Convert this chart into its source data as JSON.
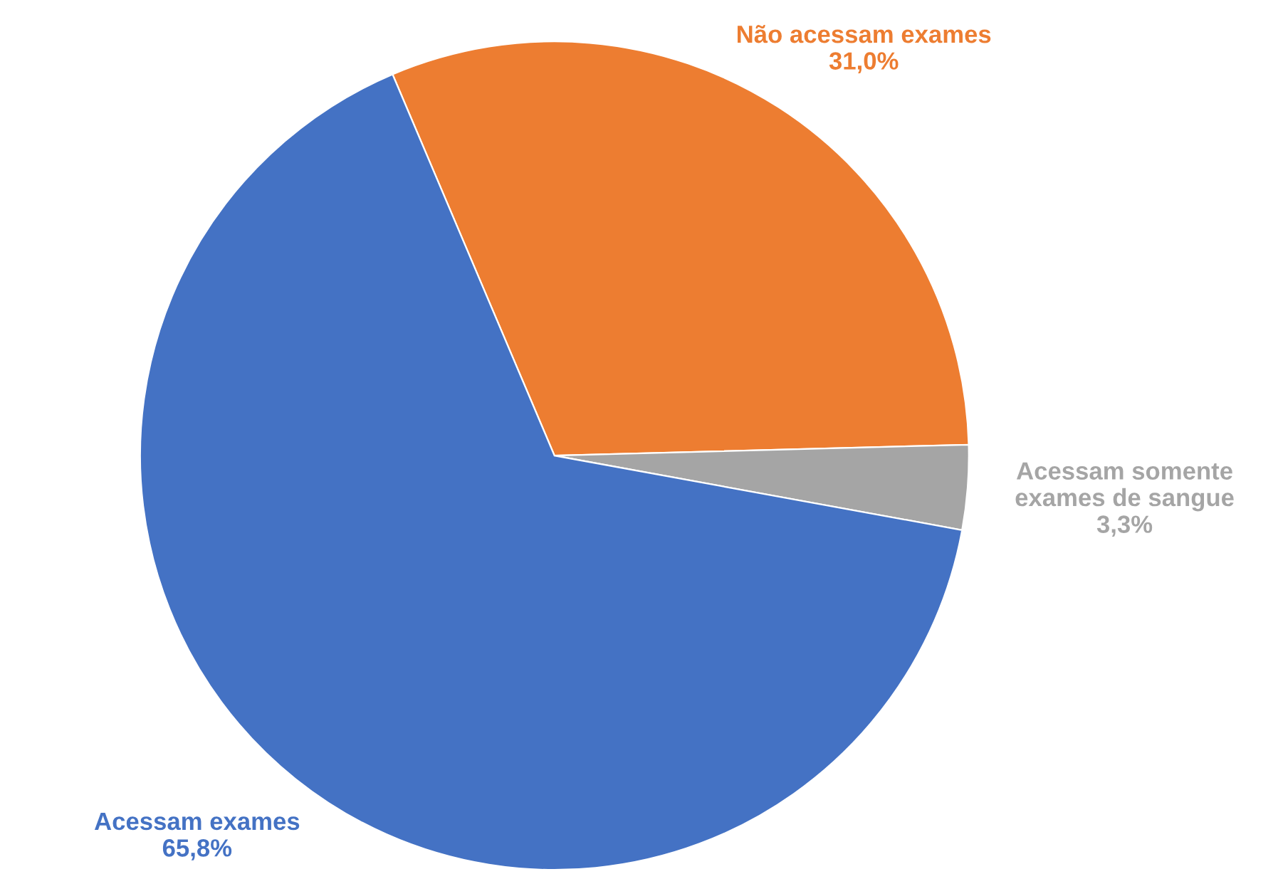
{
  "chart_data": {
    "type": "pie",
    "categories": [
      "Não acessam exames",
      "Acessam somente exames de sangue",
      "Acessam exames"
    ],
    "values": [
      31.0,
      3.3,
      65.8
    ],
    "value_labels": [
      "31,0%",
      "3,3%",
      "65,8%"
    ],
    "colors": [
      "#ed7d31",
      "#a5a5a5",
      "#4472c4"
    ],
    "legend": false
  }
}
